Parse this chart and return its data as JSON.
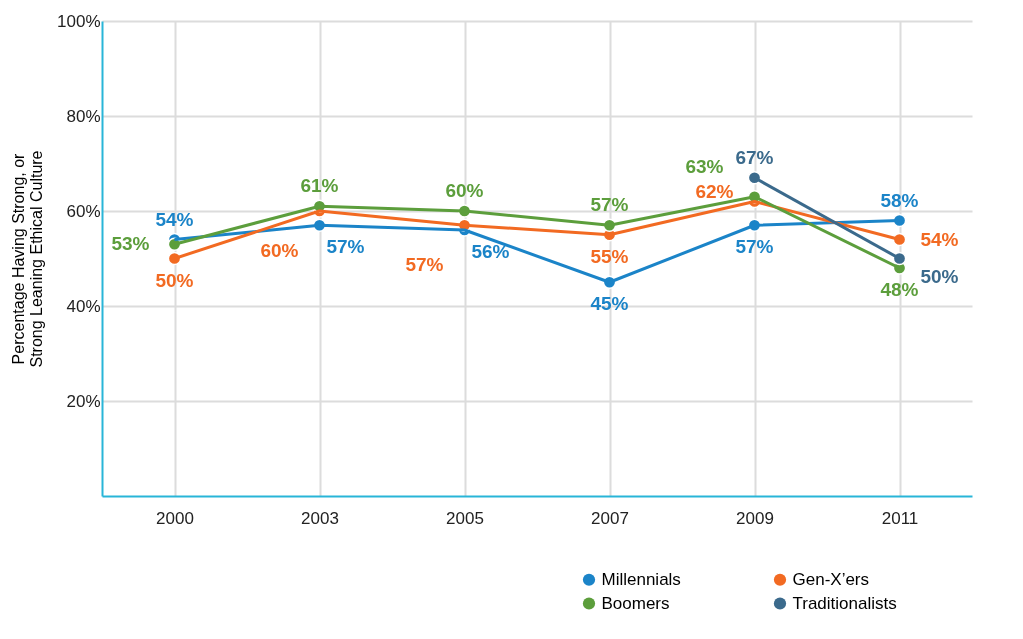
{
  "chart_data": {
    "type": "line",
    "ylabel": "Percentage Having Strong, or Strong Leaning Ethical Culture",
    "categories": [
      "2000",
      "2003",
      "2005",
      "2007",
      "2009",
      "2011"
    ],
    "series": [
      {
        "name": "Millennials",
        "color": "#1b84c8",
        "values": [
          54,
          57,
          56,
          45,
          57,
          58
        ],
        "value_labels": [
          "54%",
          "57%",
          "56%",
          "45%",
          "57%",
          "58%"
        ]
      },
      {
        "name": "Gen-X’ers",
        "color": "#f26a22",
        "values": [
          50,
          60,
          57,
          55,
          62,
          54
        ],
        "value_labels": [
          "50%",
          "60%",
          "57%",
          "55%",
          "62%",
          "54%"
        ]
      },
      {
        "name": "Boomers",
        "color": "#5c9e3c",
        "values": [
          53,
          61,
          60,
          57,
          63,
          48
        ],
        "value_labels": [
          "53%",
          "61%",
          "60%",
          "57%",
          "63%",
          "48%"
        ]
      },
      {
        "name": "Traditionalists",
        "color": "#3b6a8c",
        "values": [
          null,
          null,
          null,
          null,
          67,
          50
        ],
        "value_labels": [
          null,
          null,
          null,
          null,
          "67%",
          "50%"
        ]
      }
    ],
    "ylim": [
      0,
      100
    ],
    "yticks": [
      {
        "value": 20,
        "label": "20%"
      },
      {
        "value": 40,
        "label": "40%"
      },
      {
        "value": 60,
        "label": "60%"
      },
      {
        "value": 80,
        "label": "80%"
      },
      {
        "value": 100,
        "label": "100%"
      }
    ],
    "grid": true,
    "legend": "bottom right",
    "marker": "circle",
    "line_style": "solid"
  }
}
